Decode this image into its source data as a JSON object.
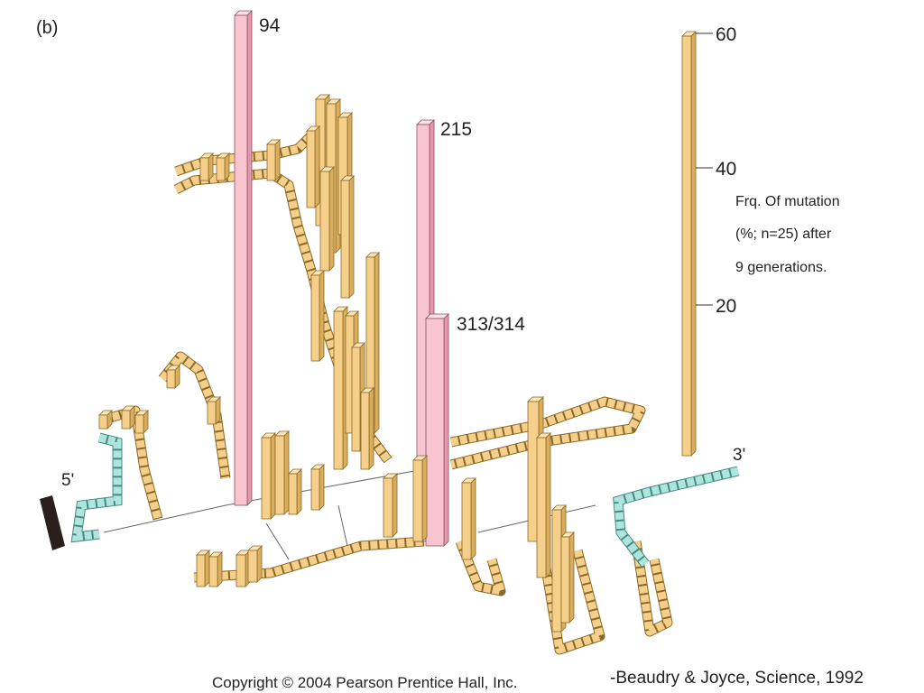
{
  "panel_label": "(b)",
  "highlights": [
    {
      "label": "94"
    },
    {
      "label": "215"
    },
    {
      "label": "313/314"
    }
  ],
  "scale": {
    "ticks": [
      "60",
      "40",
      "20"
    ],
    "caption": [
      "Frq. Of mutation",
      "(%; n=25) after",
      "9 generations."
    ]
  },
  "ends": {
    "five_prime": "5'",
    "three_prime": "3'"
  },
  "footer": {
    "copyright": "Copyright © 2004 Pearson Prentice Hall, Inc.",
    "citation": "-Beaudry & Joyce, Science, 1992"
  }
}
